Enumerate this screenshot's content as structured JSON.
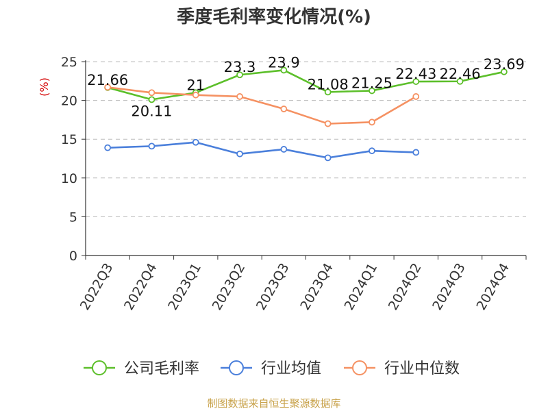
{
  "chart_data": {
    "type": "line",
    "title": "季度毛利率变化情况(%)",
    "ylabel": "(%)",
    "xlabel": "",
    "ylim": [
      0,
      25
    ],
    "yticks": [
      0,
      5,
      10,
      15,
      20,
      25
    ],
    "grid": true,
    "categories": [
      "2022Q3",
      "2022Q4",
      "2023Q1",
      "2023Q2",
      "2023Q3",
      "2023Q4",
      "2024Q1",
      "2024Q2",
      "2024Q3",
      "2024Q4"
    ],
    "series": [
      {
        "name": "公司毛利率",
        "color": "#5cbf2a",
        "values": [
          21.66,
          20.11,
          21,
          23.3,
          23.9,
          21.08,
          21.25,
          22.43,
          22.46,
          23.69
        ],
        "labels": [
          "21.66",
          "20.11",
          "21",
          "23.3",
          "23.9",
          "21.08",
          "21.25",
          "22.43",
          "22.46",
          "23.69"
        ]
      },
      {
        "name": "行业均值",
        "color": "#4a7fdb",
        "values": [
          13.9,
          14.1,
          14.6,
          13.1,
          13.7,
          12.6,
          13.5,
          13.3,
          null,
          null
        ]
      },
      {
        "name": "行业中位数",
        "color": "#f59162",
        "values": [
          21.7,
          21.0,
          20.7,
          20.5,
          18.9,
          17.0,
          17.2,
          20.5,
          null,
          null
        ]
      }
    ],
    "legend_position": "bottom",
    "source": "制图数据来自恒生聚源数据库"
  }
}
